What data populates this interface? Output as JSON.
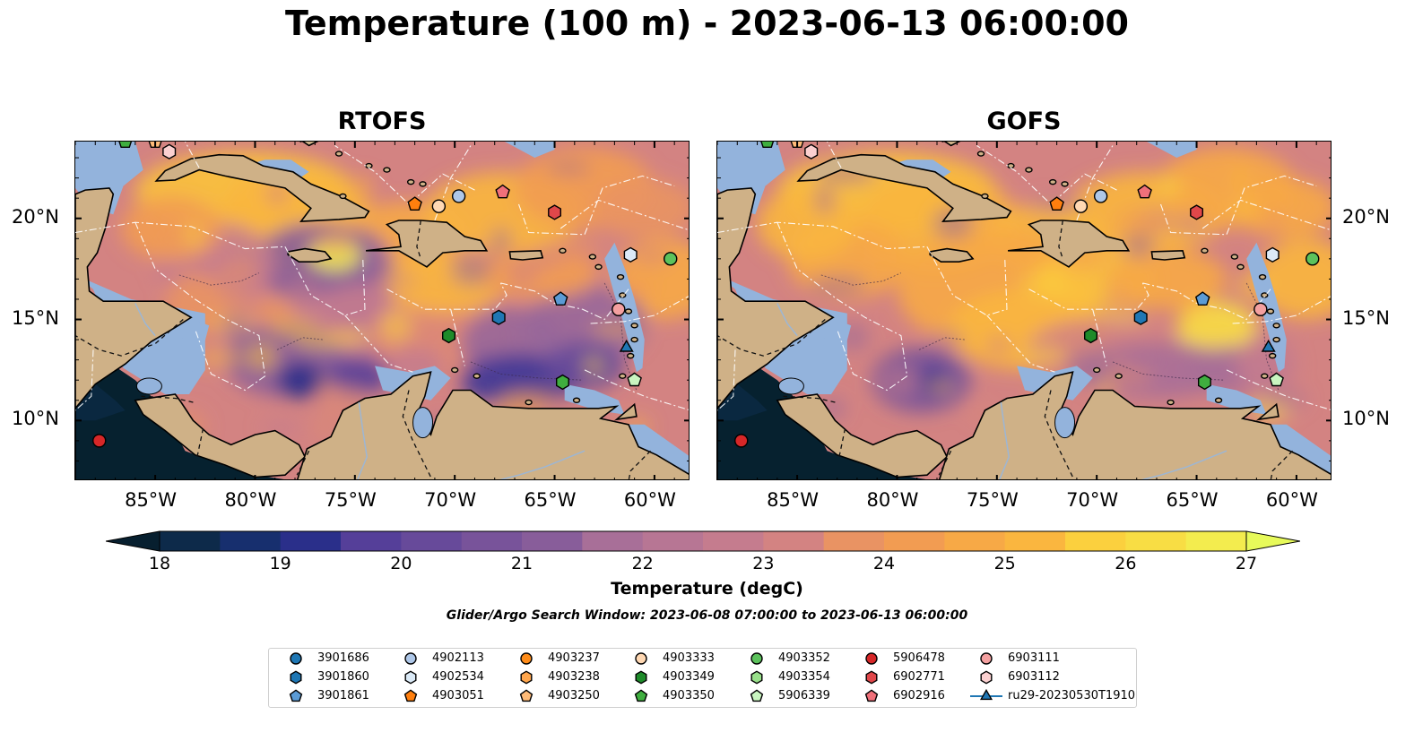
{
  "title": "Temperature (100 m) - 2023-06-13 06:00:00",
  "panels": [
    {
      "title": "RTOFS",
      "id": "rtofs"
    },
    {
      "title": "GOFS",
      "id": "gofs"
    }
  ],
  "axes": {
    "lon_ticks": [
      "85°W",
      "80°W",
      "75°W",
      "70°W",
      "65°W",
      "60°W"
    ],
    "lat_ticks": [
      "20°N",
      "15°N",
      "10°N"
    ],
    "lon_range": [
      -89,
      -58.2
    ],
    "lat_range": [
      7,
      23.8
    ]
  },
  "colorbar": {
    "label": "Temperature (degC)",
    "ticks": [
      "18",
      "19",
      "20",
      "21",
      "22",
      "23",
      "24",
      "25",
      "26",
      "27"
    ],
    "min": 18,
    "max": 27,
    "extend": "both",
    "colors": [
      "#071f2f",
      "#0d2a4a",
      "#172f6e",
      "#2a2f8a",
      "#3f3696",
      "#553f99",
      "#674a9a",
      "#78539a",
      "#885d9a",
      "#98679a",
      "#a86f98",
      "#b77694",
      "#c57c8e",
      "#d38382",
      "#df8a73",
      "#e99363",
      "#f29c52",
      "#f7a946",
      "#fab63f",
      "#fbc23c",
      "#fbd03e",
      "#f8dd44",
      "#f3ec4e",
      "#e7fa5a"
    ]
  },
  "subtitle": "Glider/Argo Search Window: 2023-06-08 07:00:00 to 2023-06-13 06:00:00",
  "legend": [
    {
      "label": "3901686",
      "marker": "circle",
      "color": "#1f77b4"
    },
    {
      "label": "3901860",
      "marker": "hexagon",
      "color": "#1f77b4"
    },
    {
      "label": "3901861",
      "marker": "pentagon",
      "color": "#5b9bd5"
    },
    {
      "label": "4902113",
      "marker": "circle",
      "color": "#aec7e8"
    },
    {
      "label": "4902534",
      "marker": "hexagon",
      "color": "#dbeaf7"
    },
    {
      "label": "4903051",
      "marker": "pentagon",
      "color": "#ff7f0e"
    },
    {
      "label": "4903237",
      "marker": "circle",
      "color": "#ff8c1a"
    },
    {
      "label": "4903238",
      "marker": "hexagon",
      "color": "#ffa64d"
    },
    {
      "label": "4903250",
      "marker": "pentagon",
      "color": "#ffbb78"
    },
    {
      "label": "4903333",
      "marker": "circle",
      "color": "#ffd8b3"
    },
    {
      "label": "4903349",
      "marker": "hexagon",
      "color": "#1e8b2a"
    },
    {
      "label": "4903350",
      "marker": "pentagon",
      "color": "#3fae3f"
    },
    {
      "label": "4903352",
      "marker": "circle",
      "color": "#5cc25c"
    },
    {
      "label": "4903354",
      "marker": "hexagon",
      "color": "#98df8a"
    },
    {
      "label": "5906339",
      "marker": "pentagon",
      "color": "#c9f5c0"
    },
    {
      "label": "5906478",
      "marker": "circle",
      "color": "#d62728"
    },
    {
      "label": "6902771",
      "marker": "hexagon",
      "color": "#e0474a"
    },
    {
      "label": "6902916",
      "marker": "pentagon",
      "color": "#f0707a"
    },
    {
      "label": "6903111",
      "marker": "circle",
      "color": "#f4a0a0"
    },
    {
      "label": "6903112",
      "marker": "hexagon",
      "color": "#fbd0d0"
    },
    {
      "label": "ru29-20230530T1910",
      "marker": "triangle",
      "color": "#1f77b4"
    }
  ],
  "markers": [
    {
      "lon": -87.8,
      "lat": 9.0,
      "marker": "circle",
      "color": "#d62728"
    },
    {
      "lon": -86.5,
      "lat": 23.8,
      "marker": "pentagon",
      "color": "#3fae3f"
    },
    {
      "lon": -85.0,
      "lat": 23.8,
      "marker": "pentagon",
      "color": "#ffbb78"
    },
    {
      "lon": -84.3,
      "lat": 23.3,
      "marker": "hexagon",
      "color": "#fbd0d0"
    },
    {
      "lon": -72.0,
      "lat": 20.7,
      "marker": "pentagon",
      "color": "#ff7f0e"
    },
    {
      "lon": -70.8,
      "lat": 20.6,
      "marker": "circle",
      "color": "#ffd8b3"
    },
    {
      "lon": -69.8,
      "lat": 21.1,
      "marker": "circle",
      "color": "#aec7e8"
    },
    {
      "lon": -67.6,
      "lat": 21.3,
      "marker": "pentagon",
      "color": "#f0707a"
    },
    {
      "lon": -65.0,
      "lat": 20.3,
      "marker": "hexagon",
      "color": "#e0474a"
    },
    {
      "lon": -61.2,
      "lat": 18.2,
      "marker": "hexagon",
      "color": "#dbeaf7"
    },
    {
      "lon": -59.2,
      "lat": 18.0,
      "marker": "circle",
      "color": "#5cc25c"
    },
    {
      "lon": -64.7,
      "lat": 16.0,
      "marker": "pentagon",
      "color": "#5b9bd5"
    },
    {
      "lon": -61.8,
      "lat": 15.5,
      "marker": "circle",
      "color": "#f4a0a0"
    },
    {
      "lon": -67.8,
      "lat": 15.1,
      "marker": "hexagon",
      "color": "#1f77b4"
    },
    {
      "lon": -70.3,
      "lat": 14.2,
      "marker": "hexagon",
      "color": "#1e8b2a"
    },
    {
      "lon": -61.4,
      "lat": 13.6,
      "marker": "triangle",
      "color": "#1f77b4"
    },
    {
      "lon": -64.6,
      "lat": 11.9,
      "marker": "hexagon",
      "color": "#3fae3f"
    },
    {
      "lon": -61.0,
      "lat": 12.0,
      "marker": "pentagon",
      "color": "#c9f5c0"
    }
  ]
}
